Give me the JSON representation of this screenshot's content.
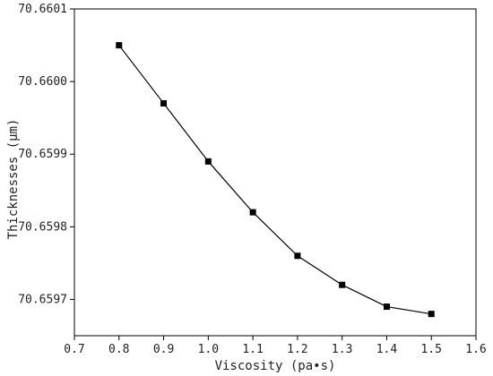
{
  "chart_data": {
    "type": "line",
    "title": "",
    "xlabel": "Viscosity (pa•s)",
    "ylabel": "Thicknesses (μm)",
    "xlim": [
      0.7,
      1.6
    ],
    "ylim": [
      70.65965,
      70.6601
    ],
    "x_ticks": [
      0.7,
      0.8,
      0.9,
      1.0,
      1.1,
      1.2,
      1.3,
      1.4,
      1.5,
      1.6
    ],
    "x_tick_labels": [
      "0.7",
      "0.8",
      "0.9",
      "1.0",
      "1.1",
      "1.2",
      "1.3",
      "1.4",
      "1.5",
      "1.6"
    ],
    "y_ticks": [
      70.6597,
      70.6598,
      70.6599,
      70.66,
      70.6601
    ],
    "y_tick_labels": [
      "70.6597",
      "70.6598",
      "70.6599",
      "70.6600",
      "70.6601"
    ],
    "grid": false,
    "legend": "none",
    "series": [
      {
        "color": "#000000",
        "marker": "square",
        "x": [
          0.8,
          0.9,
          1.0,
          1.1,
          1.2,
          1.3,
          1.4,
          1.5
        ],
        "y": [
          70.66005,
          70.65997,
          70.65989,
          70.65982,
          70.65976,
          70.65972,
          70.65969,
          70.65968
        ]
      }
    ]
  }
}
